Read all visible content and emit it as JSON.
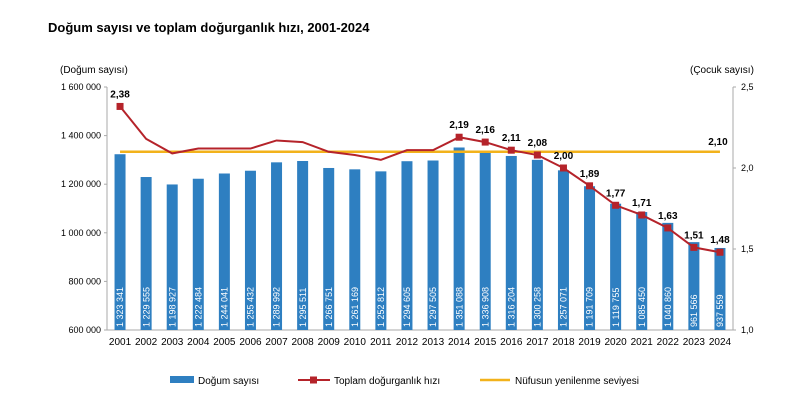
{
  "title": "Doğum sayısı ve toplam doğurganlık hızı, 2001-2024",
  "chart_data": {
    "type": "bar+line",
    "title": "Doğum sayısı ve toplam doğurganlık hızı, 2001-2024",
    "ylabel_left": "(Doğum sayısı)",
    "ylabel_right": "(Çocuk sayısı)",
    "ylim_left": [
      600000,
      1600000
    ],
    "ylim_right": [
      1.0,
      2.5
    ],
    "yticks_left": [
      "600 000",
      "800 000",
      "1 000 000",
      "1 200 000",
      "1 400 000",
      "1 600 000"
    ],
    "yticks_right": [
      "1,0",
      "1,5",
      "2,0",
      "2,5"
    ],
    "categories": [
      "2001",
      "2002",
      "2003",
      "2004",
      "2005",
      "2006",
      "2007",
      "2008",
      "2009",
      "2010",
      "2011",
      "2012",
      "2013",
      "2014",
      "2015",
      "2016",
      "2017",
      "2018",
      "2019",
      "2020",
      "2021",
      "2022",
      "2023",
      "2024"
    ],
    "series": [
      {
        "name": "Doğum sayısı",
        "type": "bar",
        "axis": "left",
        "color": "#2e7fc1",
        "values": [
          1323341,
          1229555,
          1198927,
          1222484,
          1244041,
          1255432,
          1289992,
          1295511,
          1266751,
          1261169,
          1252812,
          1294605,
          1297505,
          1351088,
          1336908,
          1316204,
          1300258,
          1257071,
          1191709,
          1119755,
          1085450,
          1040860,
          961566,
          937559
        ],
        "labels": [
          "1 323 341",
          "1 229 555",
          "1 198 927",
          "1 222 484",
          "1 244 041",
          "1 255 432",
          "1 289 992",
          "1 295 511",
          "1 266 751",
          "1 261 169",
          "1 252 812",
          "1 294 605",
          "1 297 505",
          "1 351 088",
          "1 336 908",
          "1 316 204",
          "1 300 258",
          "1 257 071",
          "1 191 709",
          "1 119 755",
          "1 085 450",
          "1 040 860",
          "961 566",
          "937 559"
        ]
      },
      {
        "name": "Toplam doğurganlık hızı",
        "type": "line",
        "axis": "right",
        "color": "#b5232a",
        "values": [
          2.38,
          2.18,
          2.09,
          2.12,
          2.12,
          2.12,
          2.17,
          2.16,
          2.1,
          2.08,
          2.05,
          2.11,
          2.11,
          2.19,
          2.16,
          2.11,
          2.08,
          2.0,
          1.89,
          1.77,
          1.71,
          1.63,
          1.51,
          1.48
        ],
        "labels": [
          "2,38",
          "",
          "",
          "",
          "",
          "",
          "",
          "",
          "",
          "",
          "",
          "",
          "",
          "2,19",
          "2,16",
          "2,11",
          "2,08",
          "2,00",
          "1,89",
          "1,77",
          "1,71",
          "1,63",
          "1,51",
          "1,48"
        ]
      },
      {
        "name": "Nüfusun yenilenme seviyesi",
        "type": "line",
        "axis": "right",
        "color": "#f2b21b",
        "value": 2.1,
        "label": "2,10"
      }
    ],
    "legend": "bottom"
  }
}
